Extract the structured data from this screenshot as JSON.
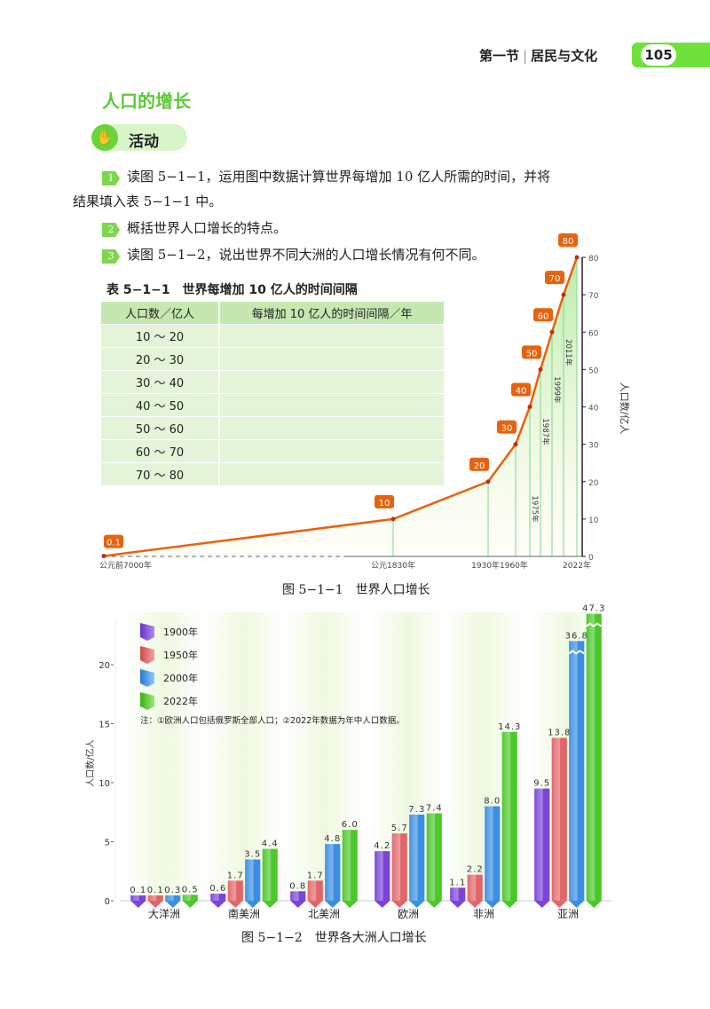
{
  "header": {
    "section": "第一节",
    "chapter": "居民与文化",
    "page_number": "105"
  },
  "section_title": "人口的增长",
  "activity": {
    "label": "活动",
    "items": [
      {
        "num": "1",
        "text": "读图 5−1−1，运用图中数据计算世界每增加 10 亿人所需的时间，并将",
        "text2": "结果填入表 5−1−1 中。"
      },
      {
        "num": "2",
        "text": "概括世界人口增长的特点。"
      },
      {
        "num": "3",
        "text": "读图 5−1−2，说出世界不同大洲的人口增长情况有何不同。"
      }
    ]
  },
  "table": {
    "title": "表 5−1−1　世界每增加 10 亿人的时间间隔",
    "headers": [
      "人口数／亿人",
      "每增加 10 亿人的时间间隔／年"
    ],
    "rows": [
      [
        "10 ～ 20",
        ""
      ],
      [
        "20 ～ 30",
        ""
      ],
      [
        "30 ～ 40",
        ""
      ],
      [
        "40 ～ 50",
        ""
      ],
      [
        "50 ～ 60",
        ""
      ],
      [
        "60 ～ 70",
        ""
      ],
      [
        "70 ～ 80",
        ""
      ]
    ]
  },
  "chart_data": [
    {
      "type": "line",
      "caption": "图 5−1−1　世界人口增长",
      "ylabel": "人口数/亿人",
      "ylim": [
        0,
        80
      ],
      "yticks": [
        0,
        10,
        20,
        30,
        40,
        50,
        60,
        70,
        80
      ],
      "points": [
        {
          "x": "公元前7000年",
          "y": 0.1
        },
        {
          "x": "公元1830年",
          "y": 10
        },
        {
          "x": "1930年",
          "y": 20
        },
        {
          "x": "1960年",
          "y": 30
        },
        {
          "x": "1975年",
          "y": 40
        },
        {
          "x": "1987年",
          "y": 50
        },
        {
          "x": "1999年",
          "y": 60
        },
        {
          "x": "2011年",
          "y": 70
        },
        {
          "x": "2022年",
          "y": 80
        }
      ],
      "color": "#e8620e",
      "fill": "#b8eca0"
    },
    {
      "type": "bar",
      "caption": "图 5−1−2　世界各大洲人口增长",
      "ylabel": "人口数/亿人",
      "ylim": [
        0,
        20
      ],
      "yticks": [
        0,
        5,
        10,
        15,
        20
      ],
      "categories": [
        "大洋洲",
        "南美洲",
        "北美洲",
        "欧洲",
        "非洲",
        "亚洲"
      ],
      "series": [
        {
          "name": "1900年",
          "color": "#7b45d8",
          "values": [
            0.1,
            0.6,
            0.8,
            4.2,
            1.1,
            9.5
          ],
          "labels": [
            "0.1",
            "0.6",
            "0.8",
            "4.2",
            "1.1",
            "9.5"
          ]
        },
        {
          "name": "1950年",
          "color": "#e0666a",
          "values": [
            0.1,
            1.7,
            1.7,
            5.7,
            2.2,
            13.8
          ],
          "labels": [
            "0.1",
            "1.7",
            "1.7",
            "5.7",
            "2.2",
            "13.8"
          ]
        },
        {
          "name": "2000年",
          "color": "#3b8fe2",
          "values": [
            0.3,
            3.5,
            4.8,
            7.3,
            8.0,
            36.8
          ],
          "labels": [
            "0.3",
            "3.5",
            "4.8",
            "7.3",
            "8.0",
            "36.8"
          ]
        },
        {
          "name": "2022年",
          "color": "#4cc82a",
          "values": [
            0.5,
            4.4,
            6.0,
            7.4,
            14.3,
            47.3
          ],
          "labels": [
            "0.5",
            "4.4",
            "6.0",
            "7.4",
            "14.3",
            "47.3"
          ]
        }
      ],
      "axis_break": true,
      "note": "注：①欧洲人口包括俄罗斯全部人口；②2022年数据为年中人口数据。"
    }
  ]
}
